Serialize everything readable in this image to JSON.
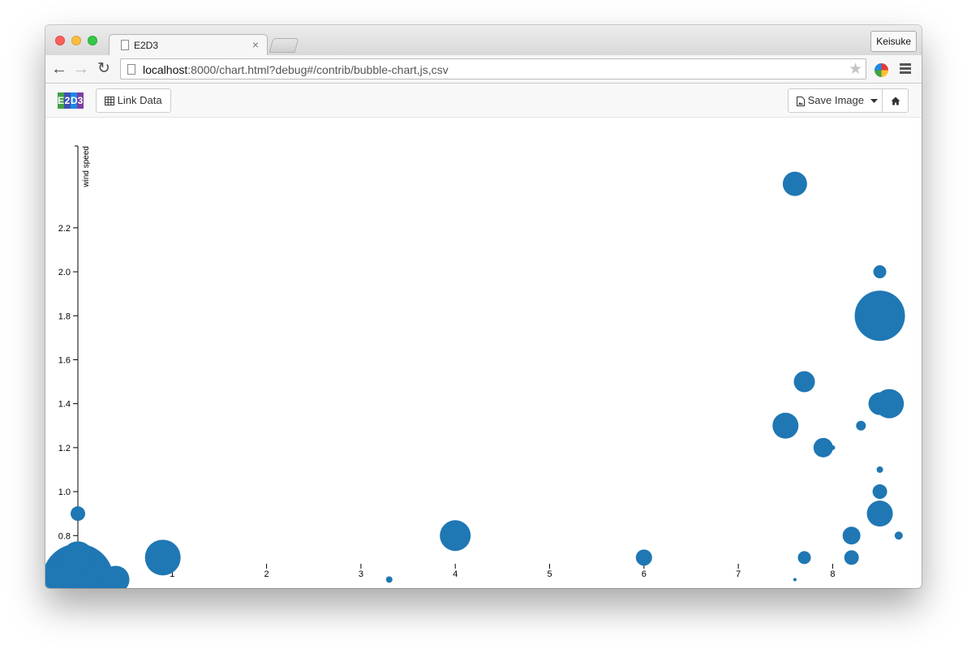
{
  "browser": {
    "tab_title": "E2D3",
    "tab_close": "×",
    "user_name": "Keisuke",
    "url_host": "localhost",
    "url_rest": ":8000/chart.html?debug#/contrib/bubble-chart,js,csv"
  },
  "app": {
    "logo_letters": [
      "E",
      "2",
      "D",
      "3"
    ],
    "logo_colors": [
      "#43a047",
      "#3f51b5",
      "#1e88e5",
      "#7b3fa0"
    ],
    "link_data_label": "Link Data",
    "save_image_label": "Save Image"
  },
  "chart_data": {
    "type": "scatter",
    "ylabel": "wind speed",
    "xlabel": "",
    "xlim": [
      -1,
      9.2
    ],
    "ylim": [
      0.55,
      2.4
    ],
    "x_ticks": [
      1,
      2,
      3,
      4,
      5,
      6,
      7,
      8
    ],
    "y_ticks": [
      0.8,
      1.0,
      1.2,
      1.4,
      1.6,
      1.8,
      2.0,
      2.2
    ],
    "color": "#1f77b4",
    "size_legend": "none",
    "points": [
      {
        "x": 0.0,
        "y": 0.9,
        "size": 9
      },
      {
        "x": 0.0,
        "y": 0.7,
        "size": 20
      },
      {
        "x": 0.0,
        "y": 0.6,
        "size": 44
      },
      {
        "x": 0.4,
        "y": 0.6,
        "size": 17
      },
      {
        "x": 0.9,
        "y": 0.7,
        "size": 22
      },
      {
        "x": 3.3,
        "y": 0.6,
        "size": 4
      },
      {
        "x": 4.0,
        "y": 0.8,
        "size": 19
      },
      {
        "x": 6.0,
        "y": 0.7,
        "size": 10
      },
      {
        "x": 7.5,
        "y": 1.3,
        "size": 16
      },
      {
        "x": 7.6,
        "y": 2.4,
        "size": 15
      },
      {
        "x": 7.6,
        "y": 0.6,
        "size": 2
      },
      {
        "x": 7.7,
        "y": 1.5,
        "size": 13
      },
      {
        "x": 7.7,
        "y": 0.7,
        "size": 8
      },
      {
        "x": 7.9,
        "y": 1.2,
        "size": 12
      },
      {
        "x": 8.0,
        "y": 1.2,
        "size": 3
      },
      {
        "x": 8.2,
        "y": 0.8,
        "size": 11
      },
      {
        "x": 8.2,
        "y": 0.7,
        "size": 9
      },
      {
        "x": 8.3,
        "y": 1.3,
        "size": 6
      },
      {
        "x": 8.5,
        "y": 2.0,
        "size": 8
      },
      {
        "x": 8.5,
        "y": 1.8,
        "size": 31
      },
      {
        "x": 8.5,
        "y": 1.4,
        "size": 14
      },
      {
        "x": 8.5,
        "y": 1.1,
        "size": 4
      },
      {
        "x": 8.5,
        "y": 1.0,
        "size": 9
      },
      {
        "x": 8.5,
        "y": 0.9,
        "size": 16
      },
      {
        "x": 8.6,
        "y": 1.4,
        "size": 18
      },
      {
        "x": 8.7,
        "y": 0.8,
        "size": 5
      }
    ]
  }
}
